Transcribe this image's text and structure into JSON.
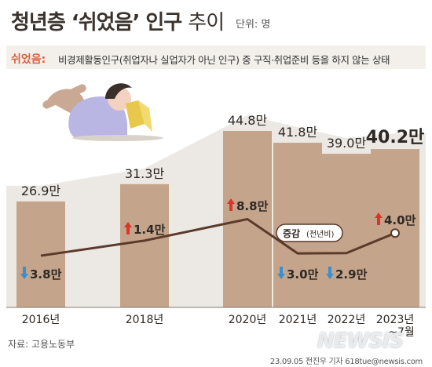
{
  "header": {
    "title_bold": "청년층 ‘쉬었음’ 인구",
    "title_light": "추이",
    "unit": "단위: 명"
  },
  "definition": {
    "key": "쉬었음:",
    "text": "비경제활동인구(취업자나 실업자가 아닌 인구) 중 구직·취업준비 등을 하지 않는 상태"
  },
  "change_label": {
    "main": "증감",
    "sub": "(전년비)"
  },
  "footer": {
    "source": "자료: 고용노동부",
    "credit": "23.09.05  전진우 기자  618tue@newsis.com",
    "watermark": "NEWSIS"
  },
  "colors": {
    "bar": "#c4a48a",
    "area": "#ece8e4",
    "line": "#5a3a2a",
    "up": "#d9362b",
    "down": "#3a8fd0",
    "text": "#2e2824"
  },
  "chart_data": {
    "type": "bar",
    "categories": [
      "2016년",
      "2018년",
      "2020년",
      "2021년",
      "2022년",
      "2023년\n~7월"
    ],
    "value_labels": [
      "26.9만",
      "31.3만",
      "44.8만",
      "41.8만",
      "39.0만",
      "40.2만"
    ],
    "values": [
      26.9,
      31.3,
      44.8,
      41.8,
      39.0,
      40.2
    ],
    "change": {
      "values": [
        -3.8,
        1.4,
        8.8,
        -3.0,
        -2.9,
        4.0
      ],
      "labels": [
        "3.8만",
        "1.4만",
        "8.8만",
        "3.0만",
        "2.9만",
        "4.0만"
      ]
    },
    "unit": "만명",
    "title": "청년층 ‘쉬었음’ 인구 추이"
  }
}
